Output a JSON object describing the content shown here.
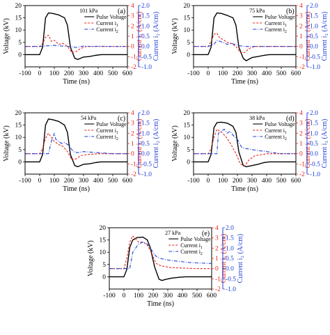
{
  "colors": {
    "voltage": "#000000",
    "current1": "#e8231b",
    "current2": "#1f3fd8"
  },
  "chart_data": [
    {
      "type": "line",
      "panel_label": "(a)",
      "pressure_label": "101 kPa",
      "xlabel": "Time (ns)",
      "ylabel_left": "Voltage (kV)",
      "ylabel_mid": "Current i₁ (A/cm)",
      "ylabel_right": "Current i₂ (A/cm)",
      "xlim": [
        -100,
        600
      ],
      "ylim_left": [
        -5,
        20
      ],
      "ylim_mid": [
        -2,
        4
      ],
      "ylim_right": [
        -1.0,
        2.0
      ],
      "xticks": [
        -100,
        0,
        100,
        200,
        300,
        400,
        500,
        600
      ],
      "yticks_left": [
        0,
        5,
        10,
        15,
        20
      ],
      "yticks_mid": [
        -2,
        -1,
        0,
        1,
        2,
        3,
        4
      ],
      "yticks_right": [
        "-1.0",
        "-0.5",
        "0.0",
        "0.5",
        "1.0",
        "1.5",
        "2.0"
      ],
      "legend": [
        "Pulse Voltage",
        "Current i1",
        "Current i2"
      ],
      "legend_placement": "top-right",
      "series": [
        {
          "name": "Pulse Voltage",
          "axis": "left",
          "x": [
            -100,
            0,
            20,
            40,
            60,
            90,
            130,
            170,
            190,
            210,
            240,
            260,
            300,
            340,
            380,
            420,
            500,
            600
          ],
          "y": [
            0,
            0,
            3,
            15,
            17,
            16.8,
            16.2,
            15,
            12,
            3,
            -1.5,
            -2,
            -1,
            -0.8,
            -0.3,
            0,
            0,
            0
          ]
        },
        {
          "name": "Current i1",
          "axis": "mid",
          "x": [
            -100,
            0,
            20,
            40,
            60,
            80,
            100,
            130,
            160,
            190,
            220,
            250,
            280,
            320,
            400,
            500,
            600
          ],
          "y": [
            0,
            0,
            0.3,
            0.9,
            1.1,
            0.5,
            0.6,
            0.2,
            0.3,
            0,
            -0.6,
            -0.5,
            -0.2,
            0,
            0,
            0,
            0
          ]
        },
        {
          "name": "Current i2",
          "axis": "right",
          "x": [
            -100,
            0,
            50,
            100,
            150,
            200,
            250,
            300,
            350,
            400,
            500,
            600
          ],
          "y": [
            0,
            0,
            0.03,
            0.05,
            0.02,
            0,
            -0.05,
            0.02,
            0,
            0.01,
            0,
            0
          ]
        }
      ]
    },
    {
      "type": "line",
      "panel_label": "(b)",
      "pressure_label": "75 kPa",
      "xlabel": "Time (ns)",
      "ylabel_left": "Voltage (kV)",
      "ylabel_mid": "Current i₁ (A/cm)",
      "ylabel_right": "Current i₂ (A/cm)",
      "xlim": [
        -100,
        600
      ],
      "ylim_left": [
        -5,
        20
      ],
      "ylim_mid": [
        -2,
        4
      ],
      "ylim_right": [
        -1.0,
        2.0
      ],
      "xticks": [
        -100,
        0,
        100,
        200,
        300,
        400,
        500,
        600
      ],
      "yticks_left": [
        0,
        5,
        10,
        15,
        20
      ],
      "yticks_mid": [
        -2,
        -1,
        0,
        1,
        2,
        3,
        4
      ],
      "yticks_right": [
        "-1.0",
        "-0.5",
        "0.0",
        "0.5",
        "1.0",
        "1.5",
        "2.0"
      ],
      "legend": [
        "Pulse Voltage",
        "Current i1",
        "Current i2"
      ],
      "legend_placement": "top-right",
      "series": [
        {
          "name": "Pulse Voltage",
          "axis": "left",
          "x": [
            -100,
            0,
            20,
            40,
            60,
            90,
            130,
            170,
            190,
            210,
            240,
            260,
            300,
            340,
            380,
            420,
            500,
            600
          ],
          "y": [
            0,
            0,
            3,
            15,
            17,
            16.8,
            16,
            15,
            12,
            3,
            -1.5,
            -2.5,
            -1.2,
            -0.8,
            -0.3,
            0,
            0,
            0
          ]
        },
        {
          "name": "Current i1",
          "axis": "mid",
          "x": [
            -100,
            0,
            20,
            40,
            60,
            80,
            100,
            130,
            160,
            190,
            220,
            250,
            280,
            320,
            400,
            500,
            600
          ],
          "y": [
            0,
            0,
            0.5,
            1.2,
            1.3,
            0.8,
            0.7,
            0.4,
            0.3,
            0,
            -0.6,
            -0.6,
            -0.2,
            0,
            0,
            0,
            0
          ]
        },
        {
          "name": "Current i2",
          "axis": "right",
          "x": [
            -100,
            0,
            40,
            60,
            80,
            100,
            130,
            160,
            200,
            250,
            300,
            400,
            500,
            600
          ],
          "y": [
            0,
            0,
            0.1,
            0.3,
            0.25,
            0.2,
            0.1,
            0.15,
            0.05,
            0,
            0,
            0,
            0,
            0
          ]
        }
      ]
    },
    {
      "type": "line",
      "panel_label": "(c)",
      "pressure_label": "54 kPa",
      "xlabel": "Time (ns)",
      "ylabel_left": "Voltage (kV)",
      "ylabel_mid": "Current i₁ (A/cm)",
      "ylabel_right": "Current i₂ (A/cm)",
      "xlim": [
        -100,
        600
      ],
      "ylim_left": [
        -5,
        20
      ],
      "ylim_mid": [
        -2,
        4
      ],
      "ylim_right": [
        -1.0,
        2.0
      ],
      "xticks": [
        -100,
        0,
        100,
        200,
        300,
        400,
        500,
        600
      ],
      "yticks_left": [
        0,
        5,
        10,
        15,
        20
      ],
      "yticks_mid": [
        -2,
        -1,
        0,
        1,
        2,
        3,
        4
      ],
      "yticks_right": [
        "-1.0",
        "-0.5",
        "0.0",
        "0.5",
        "1.0",
        "1.5",
        "2.0"
      ],
      "legend": [
        "Pulse Voltage",
        "Current i1",
        "Current i2"
      ],
      "legend_placement": "top-right",
      "series": [
        {
          "name": "Pulse Voltage",
          "axis": "left",
          "x": [
            -100,
            0,
            20,
            40,
            60,
            90,
            130,
            170,
            190,
            210,
            240,
            260,
            300,
            340,
            380,
            420,
            500,
            600
          ],
          "y": [
            0,
            0,
            3,
            15,
            17.5,
            17.2,
            16.5,
            15,
            12,
            3,
            -1.5,
            -2,
            -1,
            -0.8,
            -0.3,
            0,
            0,
            0
          ]
        },
        {
          "name": "Current i1",
          "axis": "mid",
          "x": [
            -100,
            0,
            20,
            40,
            60,
            80,
            100,
            130,
            160,
            190,
            220,
            250,
            280,
            320,
            400,
            500,
            600
          ],
          "y": [
            0,
            0,
            0.5,
            1.5,
            2.0,
            1.6,
            1.2,
            0.9,
            0.7,
            0.2,
            -0.6,
            -0.5,
            -0.2,
            -0.1,
            0,
            0,
            0
          ]
        },
        {
          "name": "Current i2",
          "axis": "right",
          "x": [
            -100,
            0,
            60,
            80,
            100,
            110,
            130,
            150,
            170,
            200,
            230,
            260,
            300,
            400,
            500,
            600
          ],
          "y": [
            0,
            0,
            0,
            0.6,
            1.0,
            0.7,
            0.6,
            0.5,
            0.55,
            0.4,
            0.1,
            0.05,
            0.1,
            0.05,
            0,
            0
          ]
        }
      ]
    },
    {
      "type": "line",
      "panel_label": "(d)",
      "pressure_label": "38 kPa",
      "xlabel": "Time (ns)",
      "ylabel_left": "Voltage (kV)",
      "ylabel_mid": "Current i₁ (A/cm)",
      "ylabel_right": "Current i₂ (A/cm)",
      "xlim": [
        -100,
        600
      ],
      "ylim_left": [
        -5,
        20
      ],
      "ylim_mid": [
        -2,
        4
      ],
      "ylim_right": [
        -1.0,
        2.0
      ],
      "xticks": [
        -100,
        0,
        100,
        200,
        300,
        400,
        500,
        600
      ],
      "yticks_left": [
        0,
        5,
        10,
        15,
        20
      ],
      "yticks_mid": [
        -2,
        -1,
        0,
        1,
        2,
        3,
        4
      ],
      "yticks_right": [
        "-1.0",
        "-0.5",
        "0.0",
        "0.5",
        "1.0",
        "1.5",
        "2.0"
      ],
      "legend": [
        "Pulse Voltage",
        "Current i1",
        "Current i2"
      ],
      "legend_placement": "top-right",
      "series": [
        {
          "name": "Pulse Voltage",
          "axis": "left",
          "x": [
            -100,
            0,
            20,
            40,
            60,
            90,
            130,
            170,
            190,
            210,
            240,
            260,
            300,
            340,
            380,
            420,
            500,
            600
          ],
          "y": [
            0,
            0,
            3,
            14,
            16,
            16.2,
            15.8,
            14.5,
            12,
            4,
            -1.5,
            -2,
            -1.5,
            -1,
            -0.3,
            0,
            0,
            0
          ]
        },
        {
          "name": "Current i1",
          "axis": "mid",
          "x": [
            -100,
            0,
            20,
            40,
            60,
            80,
            100,
            130,
            160,
            190,
            220,
            250,
            280,
            320,
            400,
            500,
            600
          ],
          "y": [
            0,
            0,
            0.5,
            1.6,
            2.4,
            2.2,
            2.0,
            1.5,
            0.8,
            0,
            -1.0,
            -1.2,
            -0.6,
            -0.2,
            0,
            0,
            0
          ]
        },
        {
          "name": "Current i2",
          "axis": "right",
          "x": [
            -100,
            0,
            60,
            70,
            90,
            110,
            130,
            150,
            170,
            200,
            230,
            260,
            300,
            350,
            400,
            500,
            600
          ],
          "y": [
            0,
            0,
            0,
            1.0,
            1.1,
            1.2,
            1.0,
            1.1,
            0.9,
            0.7,
            0.3,
            0.25,
            0.2,
            0.15,
            0.1,
            0,
            0
          ]
        }
      ]
    },
    {
      "type": "line",
      "panel_label": "(e)",
      "pressure_label": "27 kPa",
      "xlabel": "Time (ns)",
      "ylabel_left": "Voltage (kV)",
      "ylabel_mid": "Current i₁ (A/cm)",
      "ylabel_right": "Current i₂ (A/cm)",
      "xlim": [
        -100,
        600
      ],
      "ylim_left": [
        -5,
        20
      ],
      "ylim_mid": [
        -2,
        4
      ],
      "ylim_right": [
        -1.0,
        2.0
      ],
      "xticks": [
        -100,
        0,
        100,
        200,
        300,
        400,
        500,
        600
      ],
      "yticks_left": [
        0,
        5,
        10,
        15,
        20
      ],
      "yticks_mid": [
        -2,
        -1,
        0,
        1,
        2,
        3,
        4
      ],
      "yticks_right": [
        "-1.0",
        "-0.5",
        "0.0",
        "0.5",
        "1.0",
        "1.5",
        "2.0"
      ],
      "legend": [
        "Pulse Voltage",
        "Current i1",
        "Current i2"
      ],
      "legend_placement": "top-right",
      "series": [
        {
          "name": "Pulse Voltage",
          "axis": "left",
          "x": [
            -100,
            0,
            20,
            40,
            60,
            90,
            130,
            160,
            180,
            210,
            240,
            260,
            290,
            330,
            380,
            420,
            500,
            600
          ],
          "y": [
            0,
            0,
            3,
            12,
            15,
            16,
            16.2,
            15,
            12,
            4,
            -1.0,
            -1.5,
            -1.0,
            -0.5,
            -0.2,
            0,
            0,
            0
          ]
        },
        {
          "name": "Current i1",
          "axis": "mid",
          "x": [
            -100,
            0,
            20,
            40,
            60,
            80,
            100,
            130,
            160,
            190,
            220,
            250,
            280,
            320,
            400,
            500,
            600
          ],
          "y": [
            0,
            0,
            1.0,
            2.6,
            3.2,
            2.9,
            2.6,
            2.6,
            2.3,
            1.5,
            0.5,
            0.3,
            0.2,
            0.1,
            0.05,
            0,
            0
          ]
        },
        {
          "name": "Current i2",
          "axis": "right",
          "x": [
            -100,
            0,
            40,
            60,
            80,
            100,
            130,
            160,
            190,
            220,
            250,
            280,
            320,
            380,
            450,
            500,
            600
          ],
          "y": [
            0,
            0,
            0,
            0.8,
            1.0,
            1.2,
            1.3,
            1.2,
            0.9,
            0.6,
            0.5,
            0.45,
            0.4,
            0.35,
            0.3,
            0.28,
            0.25
          ]
        }
      ]
    }
  ]
}
